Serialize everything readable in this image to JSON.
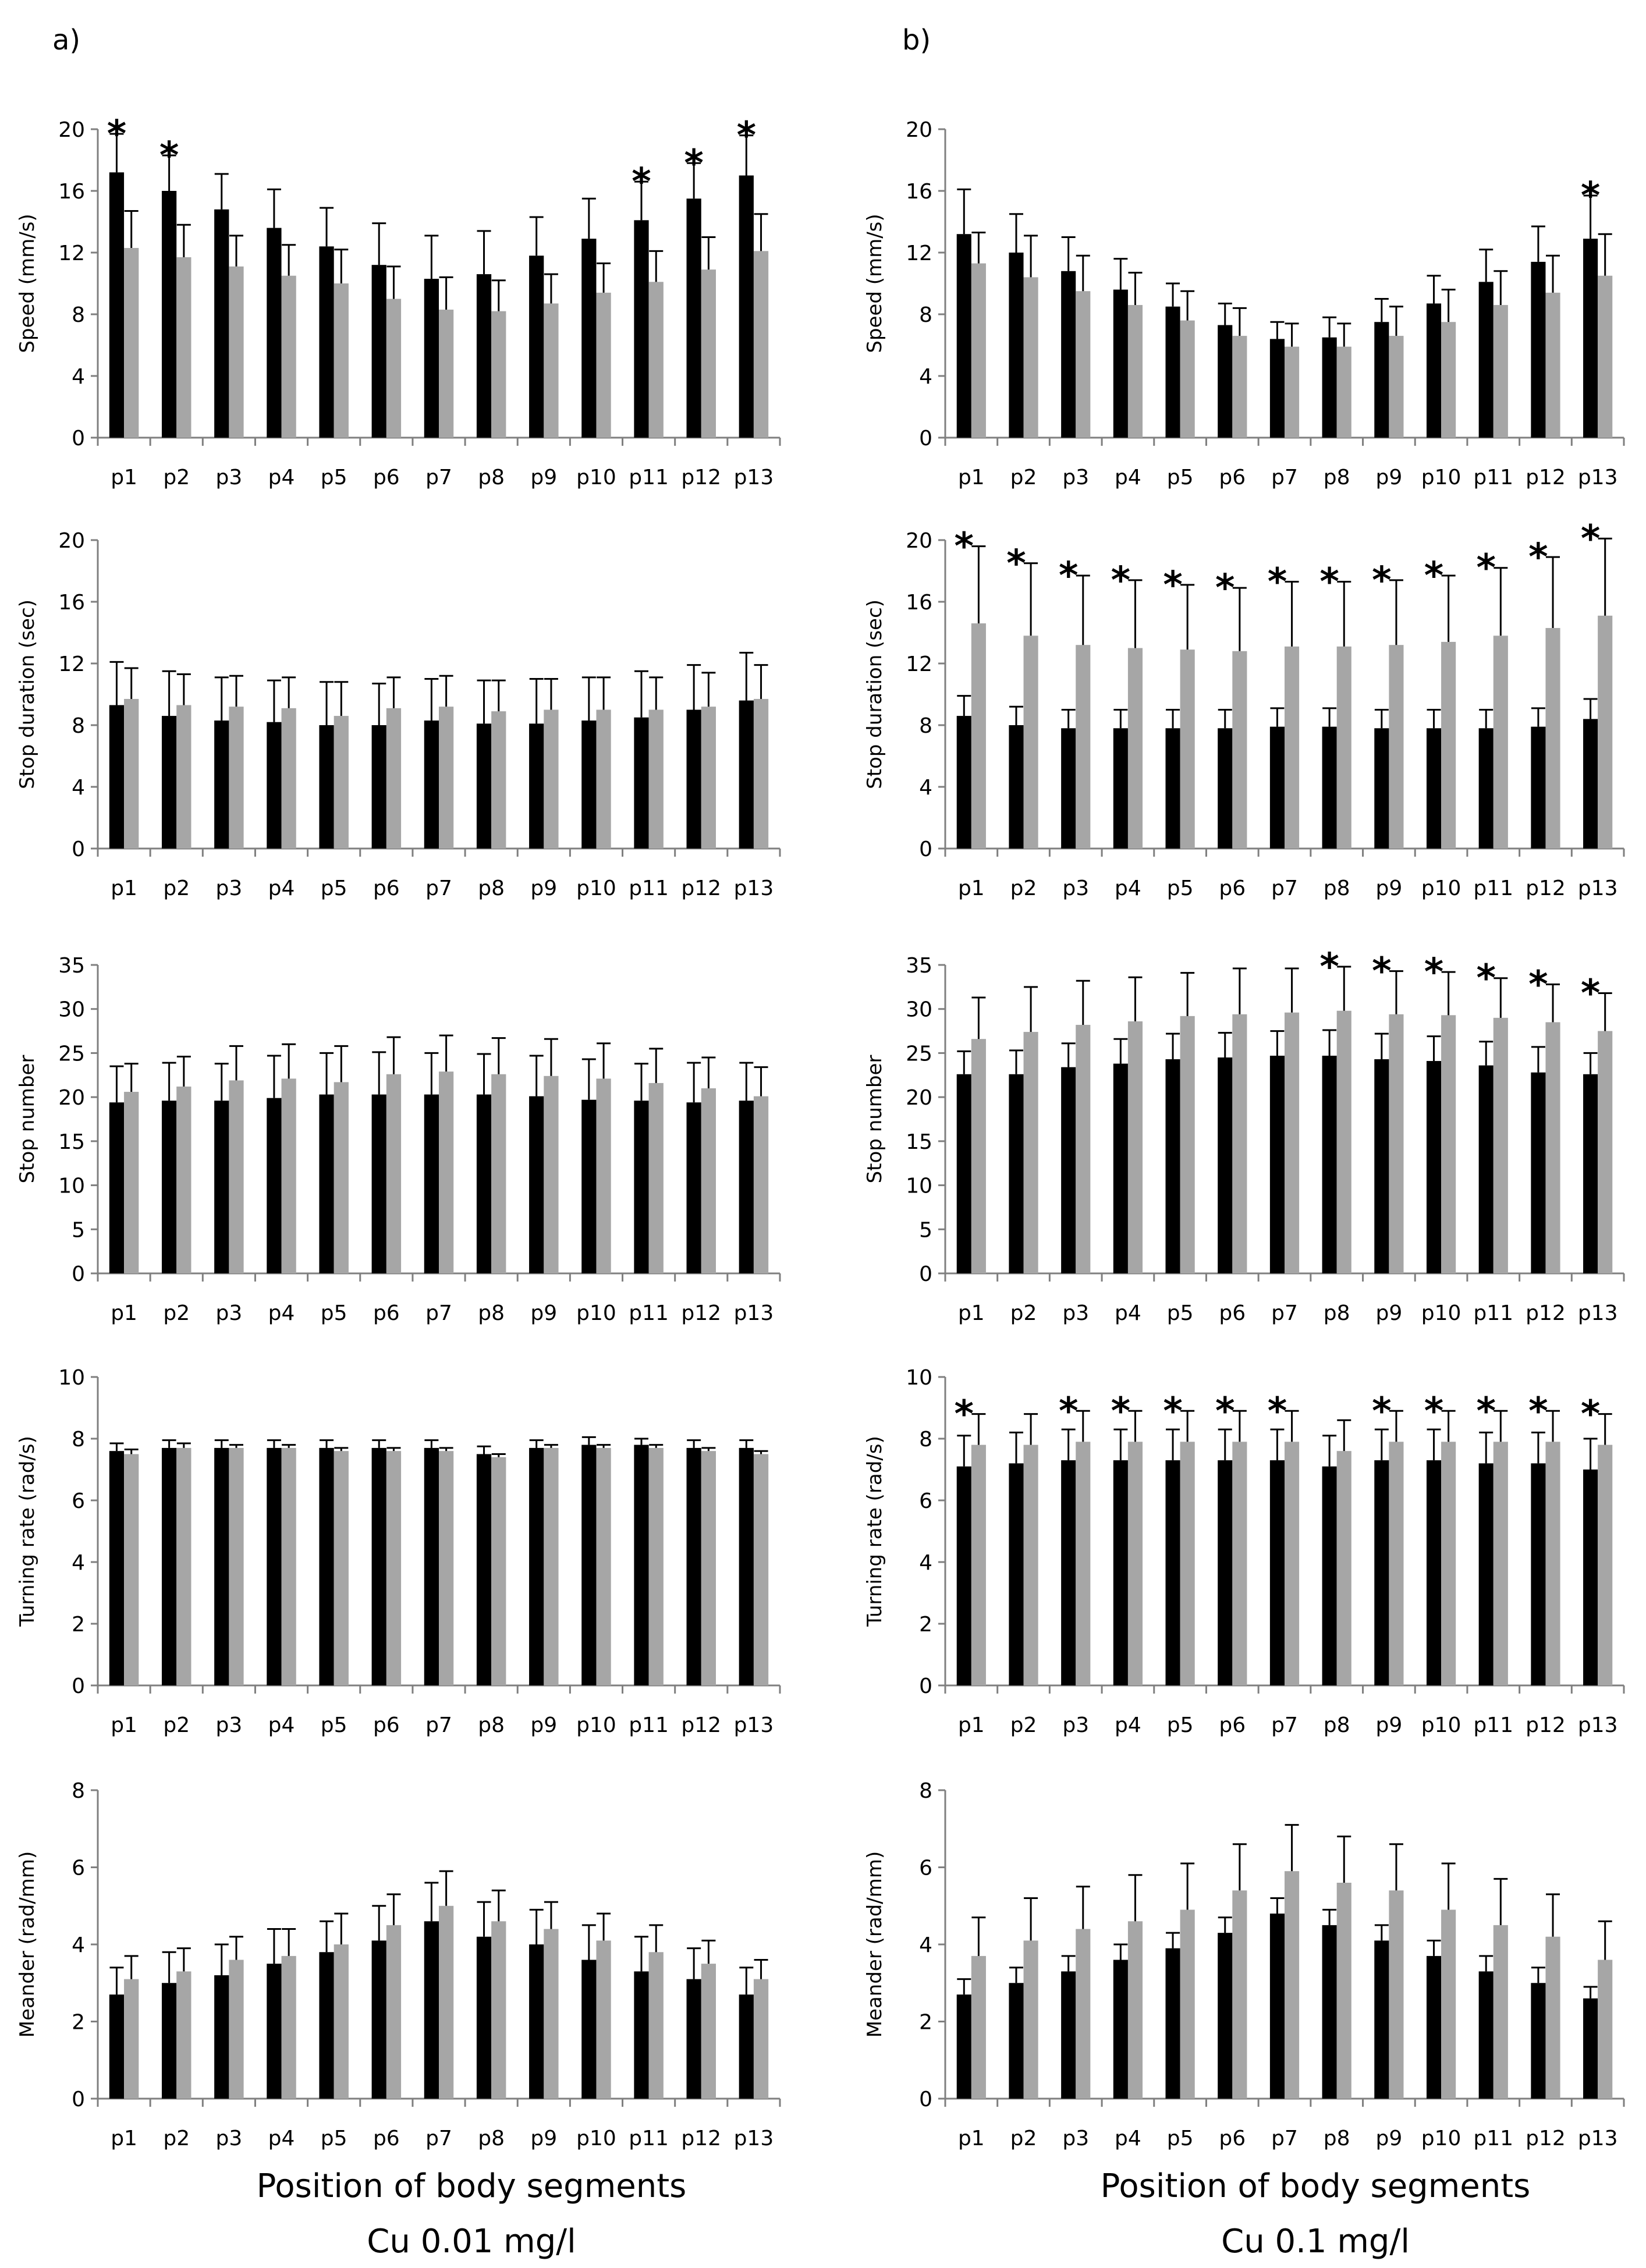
{
  "figure": {
    "columns": [
      {
        "label": "a)",
        "xlabel": "Position of body segments",
        "condition": "Cu 0.01 mg/l"
      },
      {
        "label": "b)",
        "xlabel": "Position of body segments",
        "condition": "Cu 0.1 mg/l"
      }
    ],
    "categories": [
      "p1",
      "p2",
      "p3",
      "p4",
      "p5",
      "p6",
      "p7",
      "p8",
      "p9",
      "p10",
      "p11",
      "p12",
      "p13"
    ],
    "colors": {
      "series1": "#000000",
      "series2": "#a6a6a6",
      "axis": "#7f7f7f"
    }
  },
  "chart_data": [
    {
      "type": "bar",
      "ylabel": "Speed (mm/s)",
      "ylim": [
        0,
        20
      ],
      "yticks": [
        0,
        4,
        8,
        12,
        16,
        20
      ],
      "categories": [
        "p1",
        "p2",
        "p3",
        "p4",
        "p5",
        "p6",
        "p7",
        "p8",
        "p9",
        "p10",
        "p11",
        "p12",
        "p13"
      ],
      "series": [
        {
          "values": [
            17.2,
            16.0,
            14.8,
            13.6,
            12.4,
            11.2,
            10.3,
            10.6,
            11.8,
            12.9,
            14.1,
            15.5,
            17.0
          ],
          "errors": [
            2.5,
            2.3,
            2.3,
            2.5,
            2.5,
            2.7,
            2.8,
            2.8,
            2.5,
            2.6,
            2.5,
            2.3,
            2.6
          ]
        },
        {
          "values": [
            12.3,
            11.7,
            11.1,
            10.5,
            10.0,
            9.0,
            8.3,
            8.2,
            8.7,
            9.4,
            10.1,
            10.9,
            12.1
          ],
          "errors": [
            2.4,
            2.1,
            2.0,
            2.0,
            2.2,
            2.1,
            2.1,
            2.0,
            1.9,
            1.9,
            2.0,
            2.1,
            2.4
          ]
        }
      ],
      "significant": [
        true,
        true,
        false,
        false,
        false,
        false,
        false,
        false,
        false,
        false,
        true,
        true,
        true
      ]
    },
    {
      "type": "bar",
      "ylabel": "Stop duration (sec)",
      "ylim": [
        0,
        20
      ],
      "yticks": [
        0,
        4,
        8,
        12,
        16,
        20
      ],
      "categories": [
        "p1",
        "p2",
        "p3",
        "p4",
        "p5",
        "p6",
        "p7",
        "p8",
        "p9",
        "p10",
        "p11",
        "p12",
        "p13"
      ],
      "series": [
        {
          "values": [
            9.3,
            8.6,
            8.3,
            8.2,
            8.0,
            8.0,
            8.3,
            8.1,
            8.1,
            8.3,
            8.5,
            9.0,
            9.6
          ],
          "errors": [
            2.8,
            2.9,
            2.8,
            2.7,
            2.8,
            2.7,
            2.7,
            2.8,
            2.9,
            2.8,
            3.0,
            2.9,
            3.1
          ]
        },
        {
          "values": [
            9.7,
            9.3,
            9.2,
            9.1,
            8.6,
            9.1,
            9.2,
            8.9,
            9.0,
            9.0,
            9.0,
            9.2,
            9.7
          ],
          "errors": [
            2.0,
            2.0,
            2.0,
            2.0,
            2.2,
            2.0,
            2.0,
            2.0,
            2.0,
            2.1,
            2.1,
            2.2,
            2.2
          ]
        }
      ],
      "significant": [
        false,
        false,
        false,
        false,
        false,
        false,
        false,
        false,
        false,
        false,
        false,
        false,
        false
      ]
    },
    {
      "type": "bar",
      "ylabel": "Stop number",
      "ylim": [
        0,
        35
      ],
      "yticks": [
        0,
        5,
        10,
        15,
        20,
        25,
        30,
        35
      ],
      "categories": [
        "p1",
        "p2",
        "p3",
        "p4",
        "p5",
        "p6",
        "p7",
        "p8",
        "p9",
        "p10",
        "p11",
        "p12",
        "p13"
      ],
      "series": [
        {
          "values": [
            19.4,
            19.6,
            19.6,
            19.9,
            20.3,
            20.3,
            20.3,
            20.3,
            20.1,
            19.7,
            19.6,
            19.4,
            19.6
          ],
          "errors": [
            4.1,
            4.3,
            4.2,
            4.8,
            4.7,
            4.8,
            4.7,
            4.6,
            4.6,
            4.6,
            4.2,
            4.5,
            4.3
          ]
        },
        {
          "values": [
            20.6,
            21.2,
            21.9,
            22.1,
            21.7,
            22.6,
            22.9,
            22.6,
            22.4,
            22.1,
            21.6,
            21.0,
            20.1
          ],
          "errors": [
            3.2,
            3.4,
            3.9,
            3.9,
            4.1,
            4.2,
            4.1,
            4.1,
            4.2,
            4.0,
            3.9,
            3.5,
            3.3
          ]
        }
      ],
      "significant": [
        false,
        false,
        false,
        false,
        false,
        false,
        false,
        false,
        false,
        false,
        false,
        false,
        false
      ]
    },
    {
      "type": "bar",
      "ylabel": "Turning rate (rad/s)",
      "ylim": [
        0,
        10
      ],
      "yticks": [
        0,
        2,
        4,
        6,
        8,
        10
      ],
      "categories": [
        "p1",
        "p2",
        "p3",
        "p4",
        "p5",
        "p6",
        "p7",
        "p8",
        "p9",
        "p10",
        "p11",
        "p12",
        "p13"
      ],
      "series": [
        {
          "values": [
            7.6,
            7.7,
            7.7,
            7.7,
            7.7,
            7.7,
            7.7,
            7.5,
            7.7,
            7.8,
            7.8,
            7.7,
            7.7
          ],
          "errors": [
            0.25,
            0.25,
            0.25,
            0.25,
            0.25,
            0.25,
            0.25,
            0.25,
            0.25,
            0.25,
            0.2,
            0.25,
            0.25
          ]
        },
        {
          "values": [
            7.5,
            7.7,
            7.7,
            7.7,
            7.6,
            7.6,
            7.6,
            7.4,
            7.7,
            7.7,
            7.7,
            7.6,
            7.5
          ],
          "errors": [
            0.15,
            0.15,
            0.1,
            0.1,
            0.1,
            0.1,
            0.1,
            0.1,
            0.1,
            0.1,
            0.1,
            0.1,
            0.1
          ]
        }
      ],
      "significant": [
        false,
        false,
        false,
        false,
        false,
        false,
        false,
        false,
        false,
        false,
        false,
        false,
        false
      ]
    },
    {
      "type": "bar",
      "ylabel": "Meander (rad/mm)",
      "ylim": [
        0,
        8
      ],
      "yticks": [
        0,
        2,
        4,
        6,
        8
      ],
      "categories": [
        "p1",
        "p2",
        "p3",
        "p4",
        "p5",
        "p6",
        "p7",
        "p8",
        "p9",
        "p10",
        "p11",
        "p12",
        "p13"
      ],
      "series": [
        {
          "values": [
            2.7,
            3.0,
            3.2,
            3.5,
            3.8,
            4.1,
            4.6,
            4.2,
            4.0,
            3.6,
            3.3,
            3.1,
            2.7
          ],
          "errors": [
            0.7,
            0.8,
            0.8,
            0.9,
            0.8,
            0.9,
            1.0,
            0.9,
            0.9,
            0.9,
            0.9,
            0.8,
            0.7
          ]
        },
        {
          "values": [
            3.1,
            3.3,
            3.6,
            3.7,
            4.0,
            4.5,
            5.0,
            4.6,
            4.4,
            4.1,
            3.8,
            3.5,
            3.1
          ],
          "errors": [
            0.6,
            0.6,
            0.6,
            0.7,
            0.8,
            0.8,
            0.9,
            0.8,
            0.7,
            0.7,
            0.7,
            0.6,
            0.5
          ]
        }
      ],
      "significant": [
        false,
        false,
        false,
        false,
        false,
        false,
        false,
        false,
        false,
        false,
        false,
        false,
        false
      ]
    },
    {
      "type": "bar",
      "ylabel": "Speed (mm/s)",
      "ylim": [
        0,
        20
      ],
      "yticks": [
        0,
        4,
        8,
        12,
        16,
        20
      ],
      "categories": [
        "p1",
        "p2",
        "p3",
        "p4",
        "p5",
        "p6",
        "p7",
        "p8",
        "p9",
        "p10",
        "p11",
        "p12",
        "p13"
      ],
      "series": [
        {
          "values": [
            13.2,
            12.0,
            10.8,
            9.6,
            8.5,
            7.3,
            6.4,
            6.5,
            7.5,
            8.7,
            10.1,
            11.4,
            12.9
          ],
          "errors": [
            2.9,
            2.5,
            2.2,
            2.0,
            1.5,
            1.4,
            1.1,
            1.3,
            1.5,
            1.8,
            2.1,
            2.3,
            2.8
          ]
        },
        {
          "values": [
            11.3,
            10.4,
            9.5,
            8.6,
            7.6,
            6.6,
            5.9,
            5.9,
            6.6,
            7.5,
            8.6,
            9.4,
            10.5
          ],
          "errors": [
            2.0,
            2.7,
            2.3,
            2.1,
            1.9,
            1.8,
            1.5,
            1.5,
            1.9,
            2.1,
            2.2,
            2.4,
            2.7
          ]
        }
      ],
      "significant": [
        false,
        false,
        false,
        false,
        false,
        false,
        false,
        false,
        false,
        false,
        false,
        false,
        true
      ]
    },
    {
      "type": "bar",
      "ylabel": "Stop duration (sec)",
      "ylim": [
        0,
        20
      ],
      "yticks": [
        0,
        4,
        8,
        12,
        16,
        20
      ],
      "categories": [
        "p1",
        "p2",
        "p3",
        "p4",
        "p5",
        "p6",
        "p7",
        "p8",
        "p9",
        "p10",
        "p11",
        "p12",
        "p13"
      ],
      "series": [
        {
          "values": [
            8.6,
            8.0,
            7.8,
            7.8,
            7.8,
            7.8,
            7.9,
            7.9,
            7.8,
            7.8,
            7.8,
            7.9,
            8.4
          ],
          "errors": [
            1.3,
            1.2,
            1.2,
            1.2,
            1.2,
            1.2,
            1.2,
            1.2,
            1.2,
            1.2,
            1.2,
            1.2,
            1.3
          ]
        },
        {
          "values": [
            14.6,
            13.8,
            13.2,
            13.0,
            12.9,
            12.8,
            13.1,
            13.1,
            13.2,
            13.4,
            13.8,
            14.3,
            15.1
          ],
          "errors": [
            5.0,
            4.7,
            4.5,
            4.4,
            4.2,
            4.1,
            4.2,
            4.2,
            4.2,
            4.3,
            4.4,
            4.6,
            5.0
          ]
        }
      ],
      "significant": [
        true,
        true,
        true,
        true,
        true,
        true,
        true,
        true,
        true,
        true,
        true,
        true,
        true
      ]
    },
    {
      "type": "bar",
      "ylabel": "Stop number",
      "ylim": [
        0,
        35
      ],
      "yticks": [
        0,
        5,
        10,
        15,
        20,
        25,
        30,
        35
      ],
      "categories": [
        "p1",
        "p2",
        "p3",
        "p4",
        "p5",
        "p6",
        "p7",
        "p8",
        "p9",
        "p10",
        "p11",
        "p12",
        "p13"
      ],
      "series": [
        {
          "values": [
            22.6,
            22.6,
            23.4,
            23.8,
            24.3,
            24.5,
            24.7,
            24.7,
            24.3,
            24.1,
            23.6,
            22.8,
            22.6
          ],
          "errors": [
            2.6,
            2.7,
            2.7,
            2.8,
            2.9,
            2.8,
            2.8,
            2.9,
            2.9,
            2.8,
            2.7,
            2.9,
            2.4
          ]
        },
        {
          "values": [
            26.6,
            27.4,
            28.2,
            28.6,
            29.2,
            29.4,
            29.6,
            29.8,
            29.4,
            29.3,
            29.0,
            28.5,
            27.5
          ],
          "errors": [
            4.7,
            5.1,
            5.0,
            5.0,
            4.9,
            5.2,
            5.0,
            5.0,
            4.9,
            4.9,
            4.5,
            4.3,
            4.3
          ]
        }
      ],
      "significant": [
        false,
        false,
        false,
        false,
        false,
        false,
        false,
        true,
        true,
        true,
        true,
        true,
        true
      ]
    },
    {
      "type": "bar",
      "ylabel": "Turning rate (rad/s)",
      "ylim": [
        0,
        10
      ],
      "yticks": [
        0,
        2,
        4,
        6,
        8,
        10
      ],
      "categories": [
        "p1",
        "p2",
        "p3",
        "p4",
        "p5",
        "p6",
        "p7",
        "p8",
        "p9",
        "p10",
        "p11",
        "p12",
        "p13"
      ],
      "series": [
        {
          "values": [
            7.1,
            7.2,
            7.3,
            7.3,
            7.3,
            7.3,
            7.3,
            7.1,
            7.3,
            7.3,
            7.2,
            7.2,
            7.0
          ],
          "errors": [
            1.0,
            1.0,
            1.0,
            1.0,
            1.0,
            1.0,
            1.0,
            1.0,
            1.0,
            1.0,
            1.0,
            1.0,
            1.0
          ]
        },
        {
          "values": [
            7.8,
            7.8,
            7.9,
            7.9,
            7.9,
            7.9,
            7.9,
            7.6,
            7.9,
            7.9,
            7.9,
            7.9,
            7.8
          ],
          "errors": [
            1.0,
            1.0,
            1.0,
            1.0,
            1.0,
            1.0,
            1.0,
            1.0,
            1.0,
            1.0,
            1.0,
            1.0,
            1.0
          ]
        }
      ],
      "significant": [
        true,
        false,
        true,
        true,
        true,
        true,
        true,
        false,
        true,
        true,
        true,
        true,
        true
      ]
    },
    {
      "type": "bar",
      "ylabel": "Meander (rad/mm)",
      "ylim": [
        0,
        8
      ],
      "yticks": [
        0,
        2,
        4,
        6,
        8
      ],
      "categories": [
        "p1",
        "p2",
        "p3",
        "p4",
        "p5",
        "p6",
        "p7",
        "p8",
        "p9",
        "p10",
        "p11",
        "p12",
        "p13"
      ],
      "series": [
        {
          "values": [
            2.7,
            3.0,
            3.3,
            3.6,
            3.9,
            4.3,
            4.8,
            4.5,
            4.1,
            3.7,
            3.3,
            3.0,
            2.6
          ],
          "errors": [
            0.4,
            0.4,
            0.4,
            0.4,
            0.4,
            0.4,
            0.4,
            0.4,
            0.4,
            0.4,
            0.4,
            0.4,
            0.3
          ]
        },
        {
          "values": [
            3.7,
            4.1,
            4.4,
            4.6,
            4.9,
            5.4,
            5.9,
            5.6,
            5.4,
            4.9,
            4.5,
            4.2,
            3.6
          ],
          "errors": [
            1.0,
            1.1,
            1.1,
            1.2,
            1.2,
            1.2,
            1.2,
            1.2,
            1.2,
            1.2,
            1.2,
            1.1,
            1.0
          ]
        }
      ],
      "significant": [
        false,
        false,
        false,
        false,
        false,
        false,
        false,
        false,
        false,
        false,
        false,
        false,
        false
      ]
    }
  ]
}
